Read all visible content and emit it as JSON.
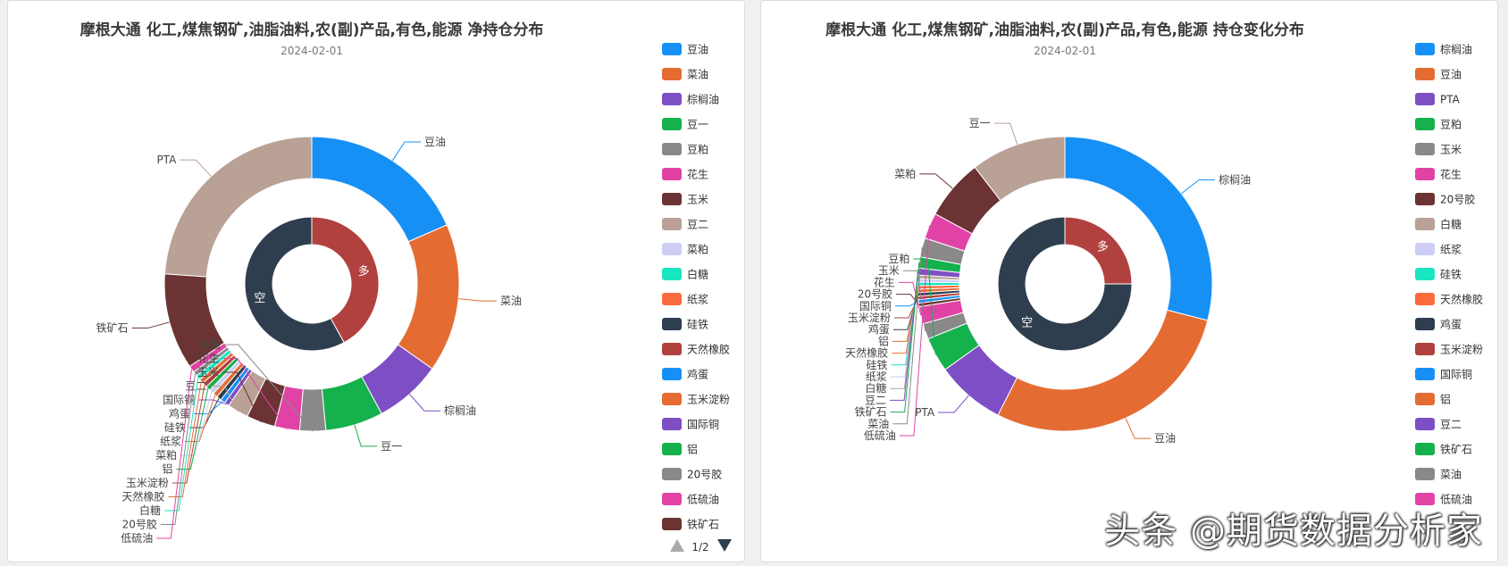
{
  "watermark": "头条 @期货数据分析家",
  "pager": {
    "text": "1/2"
  },
  "chart_data": [
    {
      "type": "pie",
      "title": "摩根大通 化工,煤焦钢矿,油脂油料,农(副)产品,有色,能源 净持仓分布",
      "subtitle": "2024-02-01",
      "inner_ring": {
        "labels": [
          "多",
          "空"
        ],
        "values": [
          42,
          58
        ],
        "colors": [
          "#b0413e",
          "#2f3e4e"
        ]
      },
      "outer_ring": {
        "labels": [
          "豆油",
          "菜油",
          "棕榈油",
          "豆一",
          "豆粕",
          "花生",
          "玉米",
          "豆二",
          "国际铜",
          "鸡蛋",
          "硅铁",
          "纸浆",
          "菜粕",
          "铝",
          "玉米淀粉",
          "天然橡胶",
          "白糖",
          "20号胶",
          "低硫油",
          "铁矿石",
          "PTA"
        ],
        "values": [
          17.5,
          15.5,
          7.0,
          6.0,
          2.7,
          2.6,
          3.0,
          2.2,
          0.5,
          0.5,
          0.5,
          0.5,
          0.5,
          0.5,
          0.5,
          0.5,
          0.5,
          0.5,
          0.7,
          10.0,
          22.7
        ],
        "colors": [
          "#1790f6",
          "#e46c33",
          "#7e4fc4",
          "#15b14c",
          "#898989",
          "#e043a5",
          "#6b3333",
          "#b9a196",
          "#7e4fc4",
          "#1790f6",
          "#2f3e4e",
          "#e46c33",
          "#cdcdf6",
          "#15b14c",
          "#b0413e",
          "#e46c33",
          "#18e6c1",
          "#898989",
          "#e043a5",
          "#6b3333",
          "#b9a196"
        ]
      },
      "legend": {
        "items": [
          "豆油",
          "菜油",
          "棕榈油",
          "豆一",
          "豆粕",
          "花生",
          "玉米",
          "豆二",
          "菜粕",
          "白糖",
          "纸浆",
          "硅铁",
          "天然橡胶",
          "鸡蛋",
          "玉米淀粉",
          "国际铜",
          "铝",
          "20号胶",
          "低硫油",
          "铁矿石"
        ],
        "colors": [
          "#1790f6",
          "#e46c33",
          "#7e4fc4",
          "#15b14c",
          "#898989",
          "#e043a5",
          "#6b3333",
          "#b9a196",
          "#cdcdf6",
          "#18e6c1",
          "#fb6a3c",
          "#2f3e4e",
          "#b0413e",
          "#1790f6",
          "#e46c33",
          "#7e4fc4",
          "#15b14c",
          "#898989",
          "#e043a5",
          "#6b3333"
        ],
        "placement": "right"
      }
    },
    {
      "type": "pie",
      "title": "摩根大通 化工,煤焦钢矿,油脂油料,农(副)产品,有色,能源 持仓变化分布",
      "subtitle": "2024-02-01",
      "inner_ring": {
        "labels": [
          "多",
          "空"
        ],
        "values": [
          25,
          75
        ],
        "colors": [
          "#b0413e",
          "#2f3e4e"
        ]
      },
      "outer_ring": {
        "labels": [
          "棕榈油",
          "豆油",
          "PTA",
          "豆粕",
          "玉米",
          "花生",
          "20号胶",
          "国际铜",
          "玉米淀粉",
          "鸡蛋",
          "铝",
          "天然橡胶",
          "硅铁",
          "纸浆",
          "白糖",
          "豆二",
          "铁矿石",
          "菜油",
          "低硫油",
          "菜粕",
          "豆一"
        ],
        "values": [
          30.5,
          30.0,
          8.0,
          4.0,
          1.8,
          2.0,
          0.4,
          0.4,
          0.4,
          0.4,
          0.4,
          0.4,
          0.4,
          0.4,
          0.4,
          0.8,
          1.3,
          2.2,
          3.0,
          7.0,
          11.0
        ],
        "colors": [
          "#1790f6",
          "#e46c33",
          "#7e4fc4",
          "#15b14c",
          "#898989",
          "#e043a5",
          "#6b3333",
          "#1790f6",
          "#b0413e",
          "#2f3e4e",
          "#e46c33",
          "#fb6a3c",
          "#18e6c1",
          "#cdcdf6",
          "#b9a196",
          "#7e4fc4",
          "#15b14c",
          "#898989",
          "#e043a5",
          "#6b3333",
          "#b9a196"
        ]
      },
      "legend": {
        "items": [
          "棕榈油",
          "豆油",
          "PTA",
          "豆粕",
          "玉米",
          "花生",
          "20号胶",
          "白糖",
          "纸浆",
          "硅铁",
          "天然橡胶",
          "鸡蛋",
          "玉米淀粉",
          "国际铜",
          "铝",
          "豆二",
          "铁矿石",
          "菜油",
          "低硫油"
        ],
        "colors": [
          "#1790f6",
          "#e46c33",
          "#7e4fc4",
          "#15b14c",
          "#898989",
          "#e043a5",
          "#6b3333",
          "#b9a196",
          "#cdcdf6",
          "#18e6c1",
          "#fb6a3c",
          "#2f3e4e",
          "#b0413e",
          "#1790f6",
          "#e46c33",
          "#7e4fc4",
          "#15b14c",
          "#898989",
          "#e043a5"
        ],
        "placement": "right"
      }
    }
  ]
}
